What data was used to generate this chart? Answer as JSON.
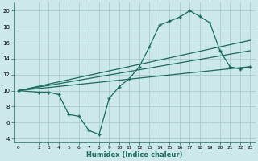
{
  "xlabel": "Humidex (Indice chaleur)",
  "bg_color": "#cce8ea",
  "grid_color": "#aacccc",
  "line_color": "#1a6b5a",
  "xlim": [
    -0.5,
    23.5
  ],
  "ylim": [
    3.5,
    21.0
  ],
  "xticks": [
    0,
    2,
    3,
    4,
    5,
    6,
    7,
    8,
    9,
    10,
    11,
    12,
    13,
    14,
    15,
    16,
    17,
    18,
    19,
    20,
    21,
    22,
    23
  ],
  "yticks": [
    4,
    6,
    8,
    10,
    12,
    14,
    16,
    18,
    20
  ],
  "curve_x": [
    0,
    2,
    3,
    4,
    5,
    6,
    7,
    8,
    9,
    10,
    11,
    12,
    13,
    14,
    15,
    16,
    17,
    18,
    19,
    20,
    21,
    22,
    23
  ],
  "curve_y": [
    10.0,
    9.8,
    9.8,
    9.5,
    7.0,
    6.8,
    5.0,
    4.5,
    9.0,
    10.5,
    11.5,
    13.0,
    15.5,
    18.2,
    18.7,
    19.2,
    20.0,
    19.3,
    18.5,
    15.0,
    13.0,
    12.7,
    13.0
  ],
  "line1_x": [
    0,
    23
  ],
  "line1_y": [
    10.0,
    16.3
  ],
  "line2_x": [
    0,
    23
  ],
  "line2_y": [
    10.0,
    15.0
  ],
  "line3_x": [
    0,
    23
  ],
  "line3_y": [
    10.0,
    13.0
  ]
}
